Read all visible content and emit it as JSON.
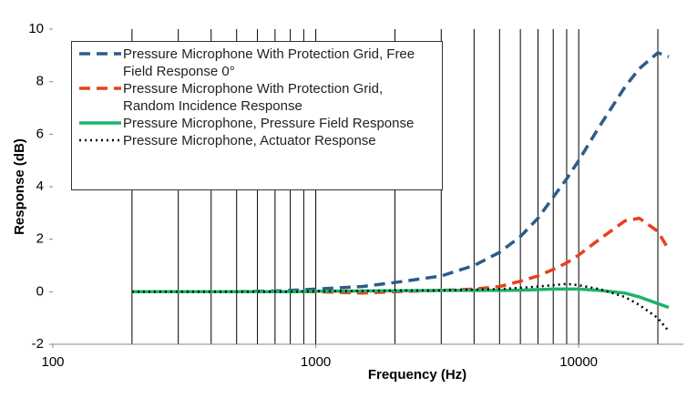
{
  "chart_data": {
    "type": "line",
    "x_label": "Frequency (Hz)",
    "y_label": "Response (dB)",
    "x_log": true,
    "xlim": [
      100,
      25000
    ],
    "ylim": [
      -2,
      10
    ],
    "xticks": [
      100,
      1000,
      10000
    ],
    "yticks": [
      -2,
      0,
      2,
      4,
      6,
      8,
      10
    ],
    "xgrid": [
      200,
      300,
      400,
      500,
      600,
      700,
      800,
      900,
      1000,
      2000,
      3000,
      4000,
      5000,
      6000,
      7000,
      8000,
      9000,
      10000,
      20000
    ],
    "x": [
      200,
      300,
      400,
      500,
      600,
      700,
      800,
      1000,
      1500,
      2000,
      3000,
      4000,
      5000,
      6000,
      7000,
      8000,
      9000,
      10000,
      12000,
      15000,
      17000,
      20000,
      22000
    ],
    "series": [
      {
        "name": "Pressure Microphone With Protection Grid, Free Field Response 0°",
        "color": "#2e5b8a",
        "dash": "dashed",
        "values": [
          0,
          0,
          0,
          0,
          0.02,
          0.03,
          0.05,
          0.1,
          0.2,
          0.35,
          0.6,
          1.0,
          1.5,
          2.1,
          2.8,
          3.6,
          4.3,
          5.0,
          6.3,
          7.8,
          8.5,
          9.1,
          8.95
        ]
      },
      {
        "name": "Pressure Microphone With Protection Grid, Random Incidence Response",
        "color": "#e8401c",
        "dash": "dashed",
        "values": [
          0,
          0,
          0,
          0,
          0,
          0,
          0,
          0,
          -0.05,
          0,
          0.05,
          0.1,
          0.2,
          0.4,
          0.6,
          0.85,
          1.1,
          1.4,
          2.0,
          2.7,
          2.8,
          2.3,
          1.6
        ]
      },
      {
        "name": "Pressure Microphone, Pressure Field Response",
        "color": "#1db36b",
        "dash": "solid",
        "values": [
          0,
          0,
          0,
          0,
          0,
          0,
          0,
          0.02,
          0.03,
          0.04,
          0.05,
          0.05,
          0.05,
          0.06,
          0.08,
          0.1,
          0.1,
          0.1,
          0.05,
          -0.05,
          -0.2,
          -0.45,
          -0.6
        ]
      },
      {
        "name": "Pressure Microphone, Actuator Response",
        "color": "#000000",
        "dash": "dotted",
        "values": [
          0,
          0,
          0,
          0,
          0,
          0,
          0,
          0.02,
          0.03,
          0.05,
          0.05,
          0.08,
          0.1,
          0.15,
          0.2,
          0.25,
          0.3,
          0.25,
          0.1,
          -0.2,
          -0.5,
          -1.0,
          -1.5
        ]
      }
    ]
  }
}
